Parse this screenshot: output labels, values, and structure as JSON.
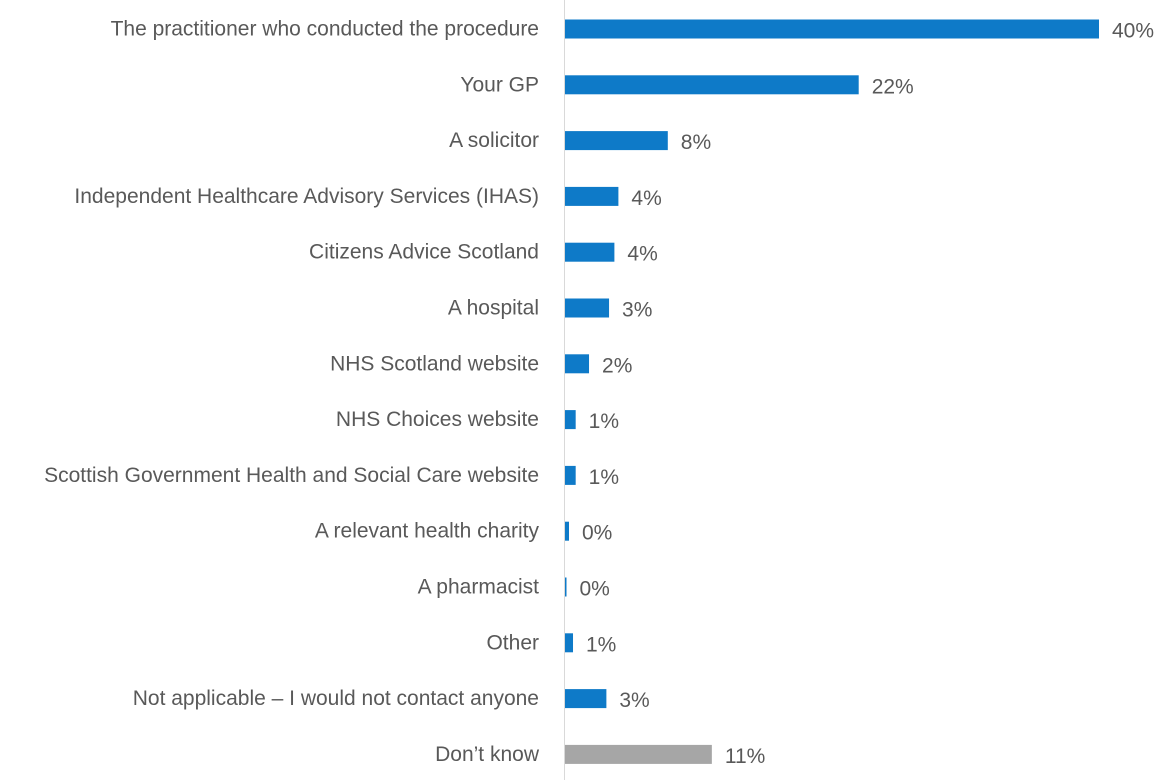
{
  "chart_data": {
    "type": "bar",
    "orientation": "horizontal",
    "title": "",
    "xlabel": "",
    "ylabel": "",
    "grid": false,
    "legend": "none",
    "value_suffix": "%",
    "xlim": [
      0,
      40.5
    ],
    "colors": {
      "primary": "#0e7ac8",
      "muted": "#a6a6a6",
      "axis": "#d9d9d9",
      "label": "#595959"
    },
    "categories": [
      "The practitioner who conducted the procedure",
      "Your GP",
      "A solicitor",
      "Independent Healthcare Advisory Services (IHAS)",
      "Citizens Advice Scotland",
      "A hospital",
      "NHS Scotland website",
      "NHS Choices website",
      "Scottish Government Health and Social Care website",
      "A relevant health charity",
      "A pharmacist",
      "Other",
      "Not applicable – I would not contact anyone",
      "Don’t know"
    ],
    "values": [
      40,
      22,
      7.7,
      4,
      3.7,
      3.3,
      1.8,
      0.8,
      0.8,
      0.3,
      0.1,
      0.6,
      3.1,
      11
    ],
    "labels": [
      "40%",
      "22%",
      "8%",
      "4%",
      "4%",
      "3%",
      "2%",
      "1%",
      "1%",
      "0%",
      "0%",
      "1%",
      "3%",
      "11%"
    ],
    "bar_colors": [
      "primary",
      "primary",
      "primary",
      "primary",
      "primary",
      "primary",
      "primary",
      "primary",
      "primary",
      "primary",
      "primary",
      "primary",
      "primary",
      "muted"
    ]
  }
}
